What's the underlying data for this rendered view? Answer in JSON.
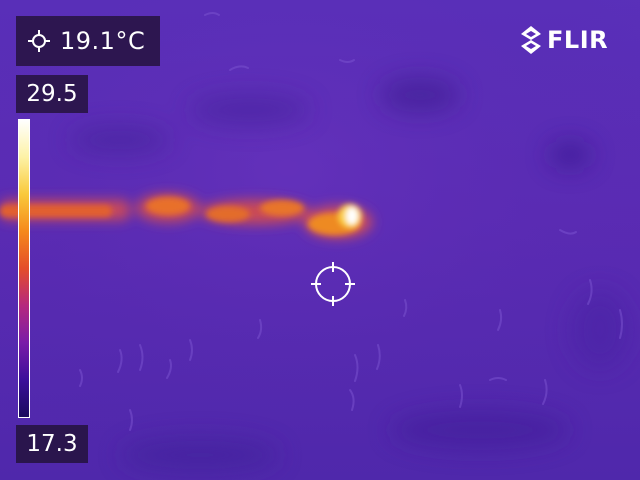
{
  "camera": {
    "brand": "FLIR",
    "palette": "iron",
    "palette_colors": [
      "#1a0a5e",
      "#3c0f9a",
      "#7a1ca8",
      "#b5287e",
      "#e44d2a",
      "#f5891b",
      "#f9c93b",
      "#fdf2a6",
      "#ffffff"
    ],
    "background_color": "#5a2cb6"
  },
  "spot_meter": {
    "value": "19.1°C",
    "icon": "spot-meter-crosshair-icon"
  },
  "color_scale": {
    "max_label": "29.5",
    "min_label": "17.3"
  },
  "scene": {
    "description_colors": {
      "warm_streak": "#e0622a",
      "hot_spot": "#ffffff"
    }
  }
}
